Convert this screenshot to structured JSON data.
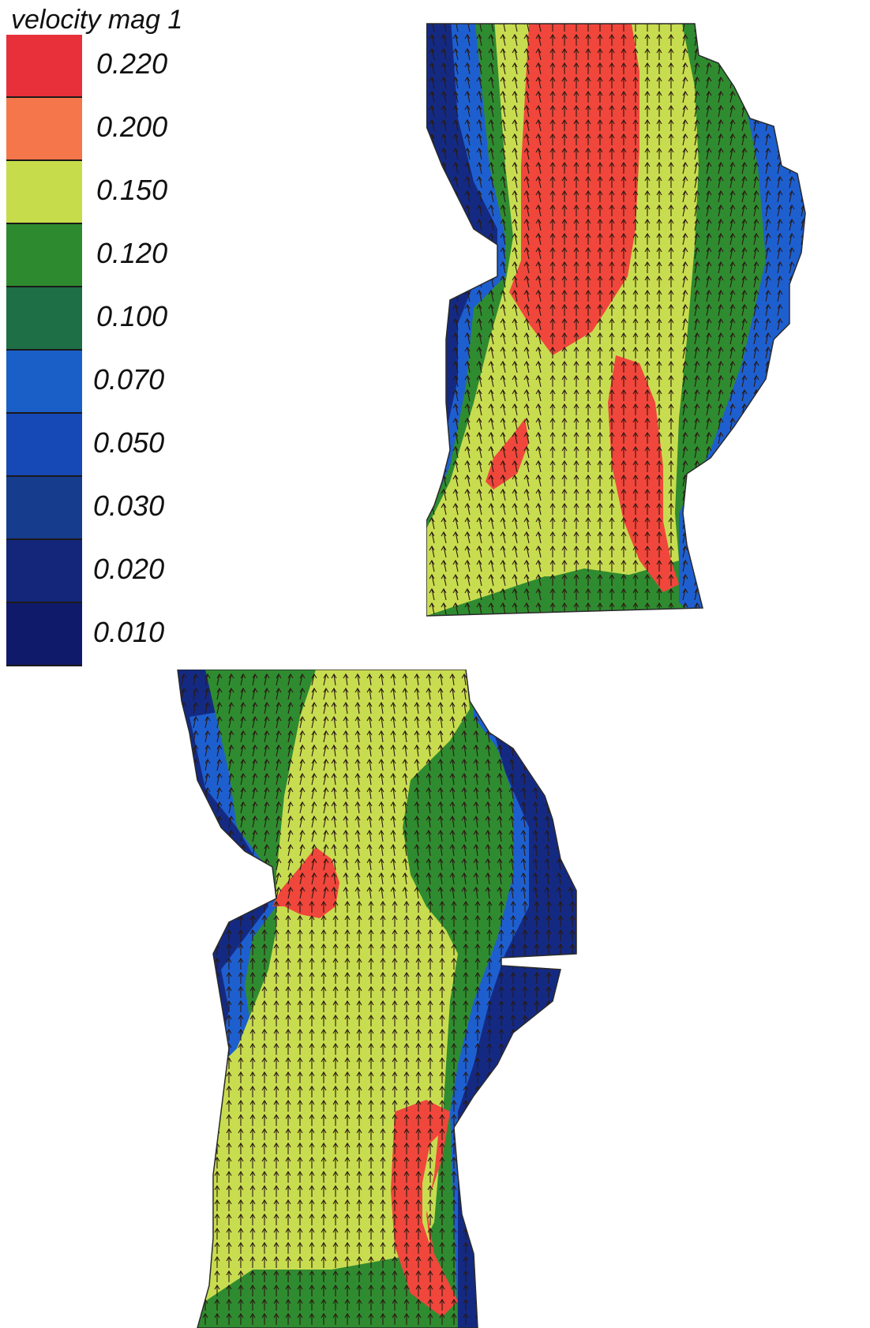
{
  "legend": {
    "title": "velocity mag 1",
    "labels": [
      "0.220",
      "0.200",
      "0.150",
      "0.120",
      "0.100",
      "0.070",
      "0.050",
      "0.030",
      "0.020",
      "0.010"
    ],
    "colors": [
      "#e8303a",
      "#f5764a",
      "#c6dc4a",
      "#2e8a2e",
      "#1e6e46",
      "#1a5fc8",
      "#1648b6",
      "#163c8e",
      "#14267a",
      "#101a6a"
    ]
  },
  "palette": {
    "red": "#f0463c",
    "yellow_green": "#c8dc50",
    "green": "#2f8b30",
    "dark_green": "#1f6d44",
    "blue": "#1e5fd0",
    "navy": "#142a82",
    "dark_navy": "#0f1a6c",
    "arrow": "#2a1a12"
  }
}
